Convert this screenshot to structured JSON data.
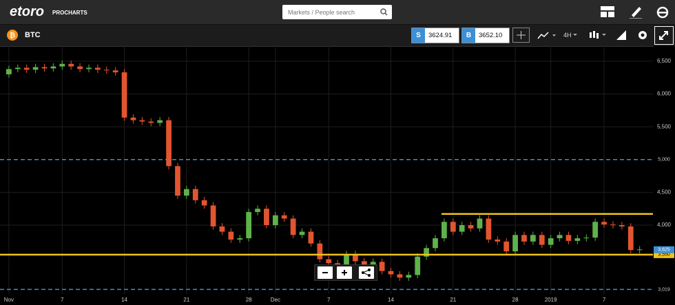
{
  "header": {
    "logo": "etoro",
    "product": "PROCHARTS",
    "search_placeholder": "Markets / People search"
  },
  "toolbar": {
    "symbol": "BTC",
    "sell_label": "S",
    "sell_price": "3624.91",
    "buy_label": "B",
    "buy_price": "3652.10",
    "interval": "4H"
  },
  "chart_data": {
    "type": "candlestick",
    "up_color": "#5fb24a",
    "down_color": "#e2552f",
    "grid": true,
    "x": [
      1,
      2,
      3,
      4,
      5,
      6,
      7,
      8,
      9,
      10,
      11,
      12,
      13,
      14,
      15,
      16,
      17,
      18,
      19,
      20,
      21,
      22,
      23,
      24,
      25,
      26,
      27,
      28,
      29,
      30,
      31,
      32,
      33,
      34,
      35,
      36,
      37,
      38,
      39,
      40,
      41,
      42,
      43,
      44,
      45,
      46,
      47,
      48,
      49,
      50,
      51,
      52,
      53,
      54,
      55,
      56,
      57,
      58,
      59,
      60,
      61,
      62,
      63,
      64,
      65,
      66,
      67,
      68,
      69,
      70,
      71,
      72
    ],
    "open": [
      6300,
      6380,
      6400,
      6370,
      6410,
      6390,
      6420,
      6460,
      6420,
      6380,
      6400,
      6370,
      6360,
      6330,
      5640,
      5600,
      5580,
      5560,
      5600,
      4900,
      4450,
      4550,
      4380,
      4300,
      3980,
      3900,
      3780,
      3800,
      4200,
      4250,
      4000,
      4150,
      4100,
      3850,
      3900,
      3720,
      3480,
      3420,
      3400,
      3560,
      3450,
      3400,
      3440,
      3300,
      3250,
      3200,
      3240,
      3520,
      3650,
      3800,
      4050,
      3900,
      4000,
      3950,
      4100,
      3780,
      3750,
      3600,
      3850,
      3750,
      3850,
      3700,
      3800,
      3850,
      3760,
      3800,
      3810,
      4050,
      4010,
      4000,
      3980,
      3620
    ],
    "high": [
      6430,
      6450,
      6450,
      6460,
      6460,
      6470,
      6510,
      6510,
      6470,
      6450,
      6450,
      6420,
      6410,
      6380,
      5690,
      5650,
      5630,
      5650,
      5650,
      4950,
      4600,
      4600,
      4430,
      4350,
      4030,
      3950,
      3850,
      4250,
      4300,
      4300,
      4200,
      4200,
      4150,
      3950,
      3950,
      3770,
      3530,
      3470,
      3610,
      3610,
      3500,
      3490,
      3490,
      3350,
      3300,
      3290,
      3570,
      3700,
      3850,
      4100,
      4100,
      4050,
      4050,
      4150,
      4150,
      3830,
      3800,
      3900,
      3900,
      3900,
      3900,
      3850,
      3900,
      3900,
      3850,
      3860,
      4100,
      4100,
      4060,
      4050,
      4030,
      3680
    ],
    "low": [
      6250,
      6330,
      6320,
      6320,
      6340,
      6340,
      6370,
      6370,
      6330,
      6330,
      6320,
      6310,
      6280,
      5590,
      5550,
      5530,
      5510,
      5510,
      4850,
      4400,
      4400,
      4330,
      4250,
      3930,
      3850,
      3730,
      3730,
      3750,
      4150,
      3950,
      3950,
      4050,
      3800,
      3800,
      3670,
      3430,
      3370,
      3350,
      3350,
      3400,
      3350,
      3350,
      3250,
      3200,
      3150,
      3150,
      3190,
      3470,
      3600,
      3750,
      3850,
      3850,
      3900,
      3900,
      3730,
      3700,
      3550,
      3550,
      3700,
      3700,
      3650,
      3650,
      3750,
      3710,
      3710,
      3750,
      3760,
      3960,
      3950,
      3930,
      3570,
      3570
    ],
    "close": [
      6380,
      6400,
      6370,
      6410,
      6390,
      6420,
      6460,
      6420,
      6380,
      6400,
      6370,
      6360,
      6330,
      5640,
      5600,
      5580,
      5560,
      5600,
      4900,
      4450,
      4550,
      4380,
      4300,
      3980,
      3900,
      3780,
      3800,
      4200,
      4250,
      4000,
      4150,
      4100,
      3850,
      3900,
      3720,
      3480,
      3420,
      3400,
      3560,
      3450,
      3400,
      3440,
      3300,
      3250,
      3200,
      3240,
      3520,
      3650,
      3800,
      4050,
      3900,
      4000,
      3950,
      4100,
      3780,
      3750,
      3600,
      3850,
      3750,
      3850,
      3700,
      3800,
      3850,
      3760,
      3800,
      3810,
      4050,
      4010,
      4000,
      3980,
      3620,
      3630
    ],
    "xlim": [
      0,
      73.5
    ],
    "ylim": [
      2950,
      6730
    ],
    "xticks": [
      {
        "value": 1,
        "label": "Nov"
      },
      7,
      14,
      21,
      28,
      {
        "value": 31,
        "label": "Dec"
      },
      {
        "value": 37,
        "label": "7"
      },
      {
        "value": 44,
        "label": "14"
      },
      {
        "value": 51,
        "label": "21"
      },
      {
        "value": 58,
        "label": "28"
      },
      {
        "value": 62,
        "label": "2019"
      },
      {
        "value": 68,
        "label": "7"
      }
    ],
    "yticks": [
      {
        "value": 6500,
        "label": "6,500"
      },
      {
        "value": 6000,
        "label": "6,000"
      },
      {
        "value": 5500,
        "label": "5,500"
      },
      {
        "value": 4500,
        "label": "4,500"
      },
      {
        "value": 4000,
        "label": "4,000"
      }
    ],
    "levels": [
      {
        "value": 5000,
        "label": "5,000",
        "color": "#3d8fd6",
        "style": "dashed"
      },
      {
        "value": 3019,
        "label": "3,019",
        "color": "#3d8fd6",
        "style": "dashed"
      },
      {
        "value": 3550,
        "label": "3,550",
        "color": "#f0c419",
        "style": "solid"
      },
      {
        "value": 4170,
        "color": "#f0c419",
        "style": "solid",
        "from": 49.7
      }
    ],
    "price_marker": {
      "value": 3625,
      "label": "3,625",
      "color": "#3d8fd6"
    }
  }
}
